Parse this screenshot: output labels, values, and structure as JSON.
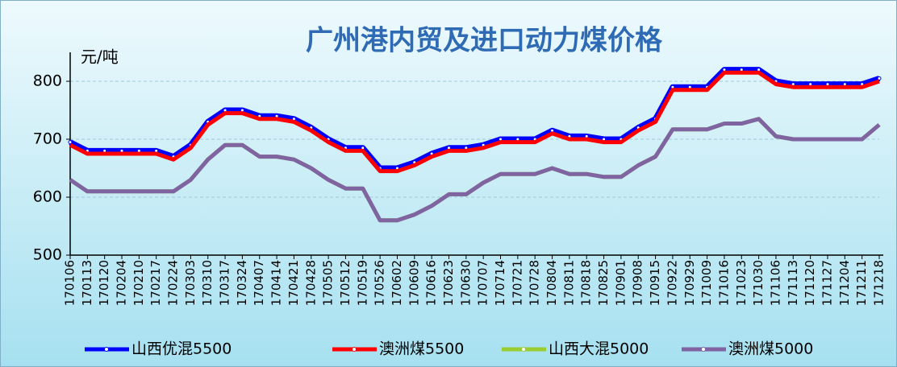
{
  "chart_data": {
    "type": "line",
    "title": "广州港内贸及进口动力煤价格",
    "y_label": "元/吨",
    "categories": [
      "170106",
      "170113",
      "170120",
      "170204",
      "170210",
      "170217",
      "170224",
      "170303",
      "170310",
      "170317",
      "170324",
      "170407",
      "170414",
      "170421",
      "170428",
      "170505",
      "170512",
      "170519",
      "170526",
      "170602",
      "170609",
      "170616",
      "170623",
      "170630",
      "170707",
      "170714",
      "170721",
      "170728",
      "170804",
      "170811",
      "170818",
      "170825",
      "170901",
      "170908",
      "170915",
      "170922",
      "170929",
      "171009",
      "171016",
      "171023",
      "171030",
      "171106",
      "171113",
      "171120",
      "171127",
      "171204",
      "171211",
      "171218"
    ],
    "series": [
      {
        "name": "山西优混5500",
        "color": "#0000ff",
        "markers": true,
        "values": [
          695,
          680,
          680,
          680,
          680,
          680,
          670,
          690,
          730,
          750,
          750,
          740,
          740,
          735,
          720,
          700,
          685,
          685,
          650,
          650,
          660,
          675,
          685,
          685,
          690,
          700,
          700,
          700,
          715,
          705,
          705,
          700,
          700,
          720,
          735,
          790,
          790,
          790,
          820,
          820,
          820,
          800,
          795,
          795,
          795,
          795,
          795,
          805
        ]
      },
      {
        "name": "澳洲煤5500",
        "color": "#ff0000",
        "markers": false,
        "values": [
          690,
          675,
          675,
          675,
          675,
          675,
          665,
          685,
          725,
          745,
          745,
          735,
          735,
          730,
          715,
          695,
          680,
          680,
          645,
          645,
          655,
          670,
          680,
          680,
          685,
          695,
          695,
          695,
          710,
          700,
          700,
          695,
          695,
          715,
          730,
          785,
          785,
          785,
          815,
          815,
          815,
          795,
          790,
          790,
          790,
          790,
          790,
          800
        ]
      },
      {
        "name": "山西大混5000",
        "color": "#9acd32",
        "markers": false,
        "values": [
          630,
          610,
          610,
          610,
          610,
          610,
          610,
          630,
          665,
          690,
          690,
          670,
          670,
          665,
          650,
          630,
          615,
          615,
          560,
          560,
          570,
          585,
          605,
          605,
          625,
          640,
          640,
          640,
          650,
          640,
          640,
          635,
          635,
          655,
          670,
          717,
          717,
          717,
          727,
          727,
          735,
          705,
          700,
          700,
          700,
          700,
          700,
          725
        ]
      },
      {
        "name": "澳洲煤5000",
        "color": "#8064a2",
        "markers": false,
        "values": [
          630,
          610,
          610,
          610,
          610,
          610,
          610,
          630,
          665,
          690,
          690,
          670,
          670,
          665,
          650,
          630,
          615,
          615,
          560,
          560,
          570,
          585,
          605,
          605,
          625,
          640,
          640,
          640,
          650,
          640,
          640,
          635,
          635,
          655,
          670,
          717,
          717,
          717,
          727,
          727,
          735,
          705,
          700,
          700,
          700,
          700,
          700,
          725
        ]
      }
    ],
    "ylim": [
      500,
      850
    ],
    "yticks": [
      500,
      600,
      700,
      800
    ],
    "grid": true
  }
}
